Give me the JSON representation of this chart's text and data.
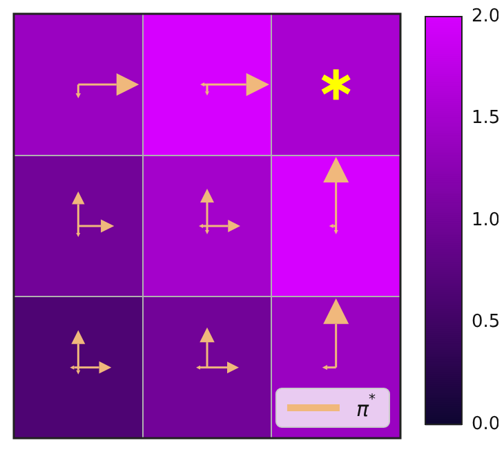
{
  "chart_data": {
    "type": "heatmap",
    "categories": [
      null,
      null,
      null
    ],
    "y_categories": [
      null,
      null,
      null
    ],
    "cells": [
      [
        1.4,
        2.0,
        1.55
      ],
      [
        1.0,
        1.5,
        2.0
      ],
      [
        0.65,
        1.0,
        1.4
      ]
    ],
    "clim": [
      0,
      2
    ],
    "cticks": [
      {
        "value": 0,
        "label": "0.0"
      },
      {
        "value": 0.5,
        "label": "0.5"
      },
      {
        "value": 1.0,
        "label": "1.0"
      },
      {
        "value": 1.5,
        "label": "1.5"
      },
      {
        "value": 2.0,
        "label": "2.0"
      }
    ],
    "grid": true,
    "tick_labels": false,
    "legend_title": "π$^{*}$"
  }
}
